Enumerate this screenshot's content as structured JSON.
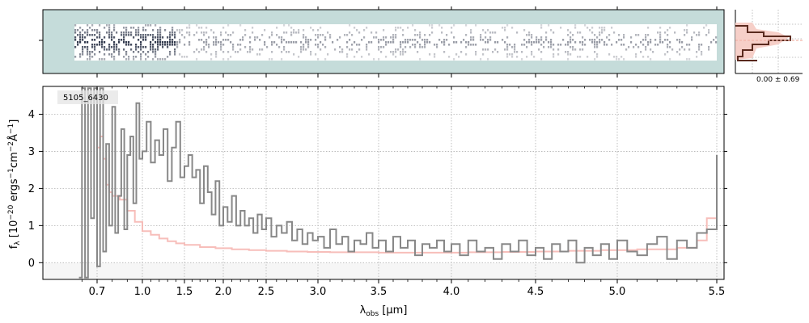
{
  "chart_data": [
    {
      "type": "heatmap",
      "background_color": "#c5dcda",
      "ink_color": "#1a2238",
      "description_rows": 15,
      "trace_profile": {
        "dense_start_um": 0.55,
        "dense_end_um": 1.4,
        "continuum_end_um": 5.5
      }
    },
    {
      "type": "line",
      "histogram_label": "0.00 ± 0.69",
      "colors": {
        "band": "#f6cfc8",
        "steps": "#5a2a1e"
      }
    },
    {
      "type": "line",
      "object_label": "5105_6430",
      "xlabel": "λ obs [μm]",
      "ylabel": "f λ [10^-20 ergs^-1 cm^-2 Å^-1]",
      "xlabel_parts": {
        "lambda": "λ",
        "sub": "obs",
        "rest": " [μm]"
      },
      "ylabel_parts": {
        "f": "f",
        "sub": "λ",
        "mid": " [10",
        "exp1": "−20",
        "ergs": " ergs",
        "exp2": "−1",
        "cm": "cm",
        "exp3": "−2",
        "ang": "Å",
        "exp4": "−1",
        "end": "]"
      },
      "x_ticks": [
        "0.7",
        "1.0",
        "1.5",
        "2.0",
        "2.5",
        "3.0",
        "3.5",
        "4.0",
        "4.5",
        "5.0",
        "5.5"
      ],
      "x_tick_values": [
        0.7,
        1.0,
        1.5,
        2.0,
        2.5,
        3.0,
        3.5,
        4.0,
        4.5,
        5.0,
        5.5
      ],
      "y_ticks": [
        "0",
        "1",
        "2",
        "3",
        "4"
      ],
      "y_tick_values": [
        0,
        1,
        2,
        3,
        4
      ],
      "xlim": [
        0.55,
        5.52
      ],
      "ylim": [
        -0.45,
        4.75
      ],
      "x_scale": "nonlinear (compressed below 1 μm)",
      "grid": true,
      "series": [
        {
          "color": "#888888",
          "x": [
            0.58,
            0.6,
            0.62,
            0.64,
            0.66,
            0.68,
            0.7,
            0.72,
            0.74,
            0.76,
            0.78,
            0.8,
            0.82,
            0.84,
            0.86,
            0.88,
            0.9,
            0.92,
            0.94,
            0.96,
            0.98,
            1.0,
            1.05,
            1.1,
            1.15,
            1.2,
            1.25,
            1.3,
            1.35,
            1.4,
            1.45,
            1.5,
            1.55,
            1.6,
            1.65,
            1.7,
            1.75,
            1.8,
            1.85,
            1.9,
            1.95,
            2.0,
            2.05,
            2.1,
            2.15,
            2.2,
            2.25,
            2.3,
            2.35,
            2.4,
            2.45,
            2.5,
            2.55,
            2.6,
            2.65,
            2.7,
            2.75,
            2.8,
            2.85,
            2.9,
            2.95,
            3.0,
            3.05,
            3.1,
            3.15,
            3.2,
            3.25,
            3.3,
            3.35,
            3.4,
            3.45,
            3.5,
            3.55,
            3.6,
            3.65,
            3.7,
            3.75,
            3.8,
            3.85,
            3.9,
            3.95,
            4.0,
            4.05,
            4.1,
            4.15,
            4.2,
            4.25,
            4.3,
            4.35,
            4.4,
            4.45,
            4.5,
            4.55,
            4.6,
            4.65,
            4.7,
            4.75,
            4.8,
            4.85,
            4.9,
            4.95,
            5.0,
            5.05,
            5.1,
            5.15,
            5.2,
            5.25,
            5.3,
            5.35,
            5.4,
            5.45,
            5.5
          ],
          "y": [
            -0.4,
            4.7,
            -0.4,
            4.7,
            1.2,
            4.7,
            -0.1,
            4.7,
            0.3,
            3.2,
            1.0,
            4.2,
            0.8,
            1.8,
            3.6,
            0.9,
            2.9,
            3.4,
            1.6,
            4.3,
            2.8,
            3.0,
            3.8,
            2.7,
            3.3,
            2.9,
            3.6,
            2.2,
            3.1,
            3.8,
            2.3,
            2.6,
            2.9,
            2.3,
            2.5,
            1.6,
            2.6,
            1.9,
            1.3,
            2.2,
            1.0,
            1.5,
            1.1,
            1.8,
            1.0,
            1.4,
            1.0,
            1.2,
            0.8,
            1.3,
            0.9,
            1.2,
            0.7,
            1.0,
            0.8,
            1.1,
            0.6,
            0.9,
            0.5,
            0.8,
            0.6,
            0.7,
            0.4,
            0.9,
            0.5,
            0.7,
            0.3,
            0.6,
            0.5,
            0.8,
            0.4,
            0.6,
            0.3,
            0.7,
            0.4,
            0.6,
            0.2,
            0.5,
            0.4,
            0.6,
            0.3,
            0.5,
            0.2,
            0.6,
            0.3,
            0.4,
            0.1,
            0.5,
            0.3,
            0.6,
            0.2,
            0.4,
            0.1,
            0.5,
            0.3,
            0.6,
            0.0,
            0.4,
            0.2,
            0.5,
            0.1,
            0.6,
            0.3,
            0.2,
            0.5,
            0.7,
            0.1,
            0.6,
            0.4,
            0.8,
            0.9,
            2.9
          ]
        },
        {
          "color": "#f6b7b2",
          "x": [
            0.7,
            0.72,
            0.74,
            0.76,
            0.78,
            0.8,
            0.85,
            0.9,
            0.95,
            1.0,
            1.1,
            1.2,
            1.3,
            1.4,
            1.5,
            1.7,
            1.9,
            2.1,
            2.3,
            2.5,
            2.7,
            2.9,
            3.1,
            3.3,
            3.5,
            3.7,
            3.9,
            4.1,
            4.3,
            4.5,
            4.7,
            4.9,
            5.1,
            5.3,
            5.4,
            5.45,
            5.5
          ],
          "y": [
            3.1,
            3.4,
            2.8,
            2.1,
            1.9,
            1.8,
            1.7,
            1.4,
            1.1,
            0.85,
            0.75,
            0.65,
            0.58,
            0.52,
            0.48,
            0.42,
            0.39,
            0.36,
            0.34,
            0.32,
            0.3,
            0.29,
            0.28,
            0.28,
            0.27,
            0.27,
            0.27,
            0.28,
            0.29,
            0.3,
            0.32,
            0.34,
            0.36,
            0.4,
            0.6,
            1.2,
            2.3
          ]
        }
      ]
    }
  ]
}
